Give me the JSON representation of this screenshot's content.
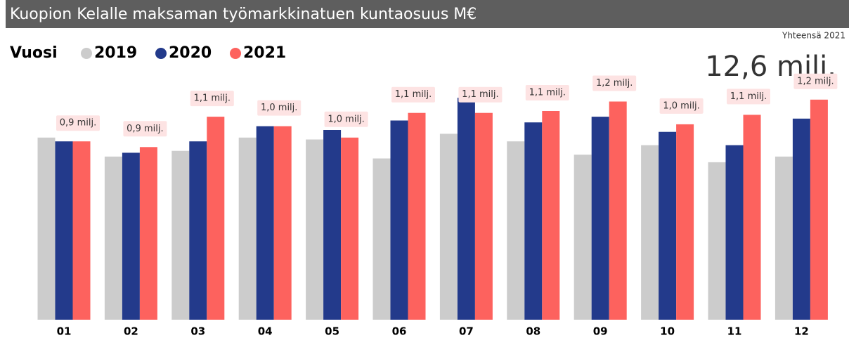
{
  "chart_data": {
    "type": "bar",
    "title": "Kuopion Kelalle maksaman työmarkkinatuen kuntaosuus M€",
    "legend_title": "Vuosi",
    "kpi_label": "Yhteensä 2021",
    "kpi_value": "12,6 milj.",
    "categories": [
      "01",
      "02",
      "03",
      "04",
      "05",
      "06",
      "07",
      "08",
      "09",
      "10",
      "11",
      "12"
    ],
    "ylim": [
      0,
      1.4
    ],
    "series": [
      {
        "name": "2019",
        "color": "#cccccc",
        "values": [
          0.96,
          0.86,
          0.89,
          0.96,
          0.95,
          0.85,
          0.98,
          0.94,
          0.87,
          0.92,
          0.83,
          0.86
        ]
      },
      {
        "name": "2020",
        "color": "#233a8b",
        "values": [
          0.94,
          0.88,
          0.94,
          1.02,
          1.0,
          1.05,
          1.17,
          1.04,
          1.07,
          0.99,
          0.92,
          1.06
        ]
      },
      {
        "name": "2021",
        "color": "#fd625e",
        "values": [
          0.94,
          0.91,
          1.07,
          1.02,
          0.96,
          1.09,
          1.09,
          1.1,
          1.15,
          1.03,
          1.08,
          1.16
        ],
        "value_labels": [
          "0,9 milj.",
          "0,9 milj.",
          "1,1 milj.",
          "1,0 milj.",
          "1,0 milj.",
          "1,1 milj.",
          "1,1 milj.",
          "1,1 milj.",
          "1,2 milj.",
          "1,0 milj.",
          "1,1 milj.",
          "1,2 milj."
        ]
      }
    ]
  }
}
